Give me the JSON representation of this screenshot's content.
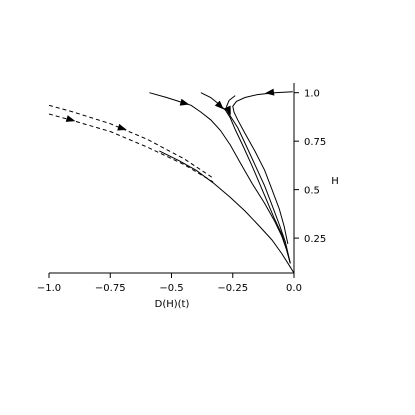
{
  "chart_data": {
    "type": "line",
    "title": "",
    "xlabel": "D(H)(t)",
    "ylabel": "H",
    "xlim": [
      -1.0,
      0.0
    ],
    "ylim": [
      0.07,
      1.05
    ],
    "x_ticks": [
      {
        "value": -1.0,
        "label": "−1.0"
      },
      {
        "value": -0.75,
        "label": "−0.75"
      },
      {
        "value": -0.5,
        "label": "−0.5"
      },
      {
        "value": -0.25,
        "label": "−0.25"
      },
      {
        "value": 0.0,
        "label": "0.0"
      }
    ],
    "y_ticks": [
      {
        "value": 0.25,
        "label": "0.25"
      },
      {
        "value": 0.5,
        "label": "0.5"
      },
      {
        "value": 0.75,
        "label": "0.75"
      },
      {
        "value": 1.0,
        "label": "1.0"
      }
    ],
    "grid": false,
    "legend": "none",
    "series": [
      {
        "style": "solid",
        "points": [
          [
            -0.59,
            1.0
          ],
          [
            -0.52,
            0.975
          ],
          [
            -0.47,
            0.955
          ],
          [
            -0.42,
            0.935
          ],
          [
            -0.38,
            0.9
          ],
          [
            -0.34,
            0.86
          ],
          [
            -0.3,
            0.805
          ],
          [
            -0.26,
            0.73
          ],
          [
            -0.22,
            0.64
          ],
          [
            -0.17,
            0.53
          ],
          [
            -0.12,
            0.43
          ],
          [
            -0.08,
            0.34
          ],
          [
            -0.05,
            0.26
          ],
          [
            -0.03,
            0.19
          ],
          [
            -0.015,
            0.12
          ]
        ],
        "arrows": [
          {
            "at": [
              -0.445,
              0.945
            ],
            "toward": [
              -0.4,
              0.93
            ]
          }
        ]
      },
      {
        "style": "solid",
        "points": [
          [
            -0.38,
            1.0
          ],
          [
            -0.34,
            0.975
          ],
          [
            -0.31,
            0.945
          ],
          [
            -0.28,
            0.91
          ],
          [
            -0.26,
            0.87
          ],
          [
            -0.24,
            0.81
          ],
          [
            -0.21,
            0.73
          ],
          [
            -0.17,
            0.62
          ],
          [
            -0.14,
            0.53
          ],
          [
            -0.11,
            0.44
          ],
          [
            -0.08,
            0.35
          ],
          [
            -0.05,
            0.27
          ],
          [
            -0.03,
            0.19
          ],
          [
            -0.015,
            0.12
          ]
        ],
        "arrows": [
          {
            "at": [
              -0.3,
              0.93
            ],
            "toward": [
              -0.28,
              0.905
            ]
          }
        ]
      },
      {
        "style": "solid",
        "points": [
          [
            -0.24,
            0.985
          ],
          [
            -0.265,
            0.96
          ],
          [
            -0.275,
            0.93
          ],
          [
            -0.27,
            0.9
          ],
          [
            -0.255,
            0.87
          ],
          [
            -0.23,
            0.82
          ],
          [
            -0.2,
            0.74
          ],
          [
            -0.16,
            0.63
          ],
          [
            -0.12,
            0.52
          ],
          [
            -0.09,
            0.42
          ],
          [
            -0.06,
            0.32
          ],
          [
            -0.035,
            0.23
          ],
          [
            -0.015,
            0.12
          ]
        ],
        "arrows": [
          {
            "at": [
              -0.265,
              0.905
            ],
            "toward": [
              -0.255,
              0.875
            ]
          }
        ]
      },
      {
        "style": "solid",
        "points": [
          [
            -0.005,
            1.005
          ],
          [
            -0.08,
            1.0
          ],
          [
            -0.15,
            0.99
          ],
          [
            -0.2,
            0.975
          ],
          [
            -0.235,
            0.955
          ],
          [
            -0.25,
            0.93
          ],
          [
            -0.245,
            0.9
          ],
          [
            -0.23,
            0.86
          ],
          [
            -0.2,
            0.79
          ],
          [
            -0.16,
            0.7
          ],
          [
            -0.12,
            0.6
          ],
          [
            -0.09,
            0.5
          ],
          [
            -0.06,
            0.4
          ],
          [
            -0.04,
            0.31
          ],
          [
            -0.03,
            0.25
          ],
          [
            -0.025,
            0.22
          ]
        ],
        "arrows": [
          {
            "at": [
              -0.1,
              1.0
            ],
            "toward": [
              -0.13,
              0.995
            ]
          }
        ]
      },
      {
        "style": "dashed",
        "points": [
          [
            -1.0,
            0.935
          ],
          [
            -0.9,
            0.9
          ],
          [
            -0.75,
            0.84
          ],
          [
            -0.6,
            0.76
          ],
          [
            -0.45,
            0.66
          ],
          [
            -0.33,
            0.56
          ]
        ],
        "arrows": [
          {
            "at": [
              -0.7,
              0.815
            ],
            "toward": [
              -0.65,
              0.795
            ]
          }
        ]
      },
      {
        "style": "dashed",
        "points": [
          [
            -1.0,
            0.89
          ],
          [
            -0.9,
            0.855
          ],
          [
            -0.75,
            0.8
          ],
          [
            -0.6,
            0.72
          ],
          [
            -0.45,
            0.63
          ],
          [
            -0.33,
            0.54
          ]
        ],
        "arrows": [
          {
            "at": [
              -0.91,
              0.86
            ],
            "toward": [
              -0.87,
              0.845
            ]
          }
        ]
      },
      {
        "style": "solid",
        "points": [
          [
            -0.55,
            0.7
          ],
          [
            -0.47,
            0.65
          ],
          [
            -0.4,
            0.6
          ],
          [
            -0.33,
            0.535
          ],
          [
            -0.26,
            0.46
          ],
          [
            -0.2,
            0.39
          ],
          [
            -0.14,
            0.31
          ],
          [
            -0.09,
            0.24
          ],
          [
            -0.05,
            0.17
          ],
          [
            -0.02,
            0.11
          ],
          [
            0.0,
            0.07
          ]
        ],
        "arrows": []
      }
    ]
  }
}
